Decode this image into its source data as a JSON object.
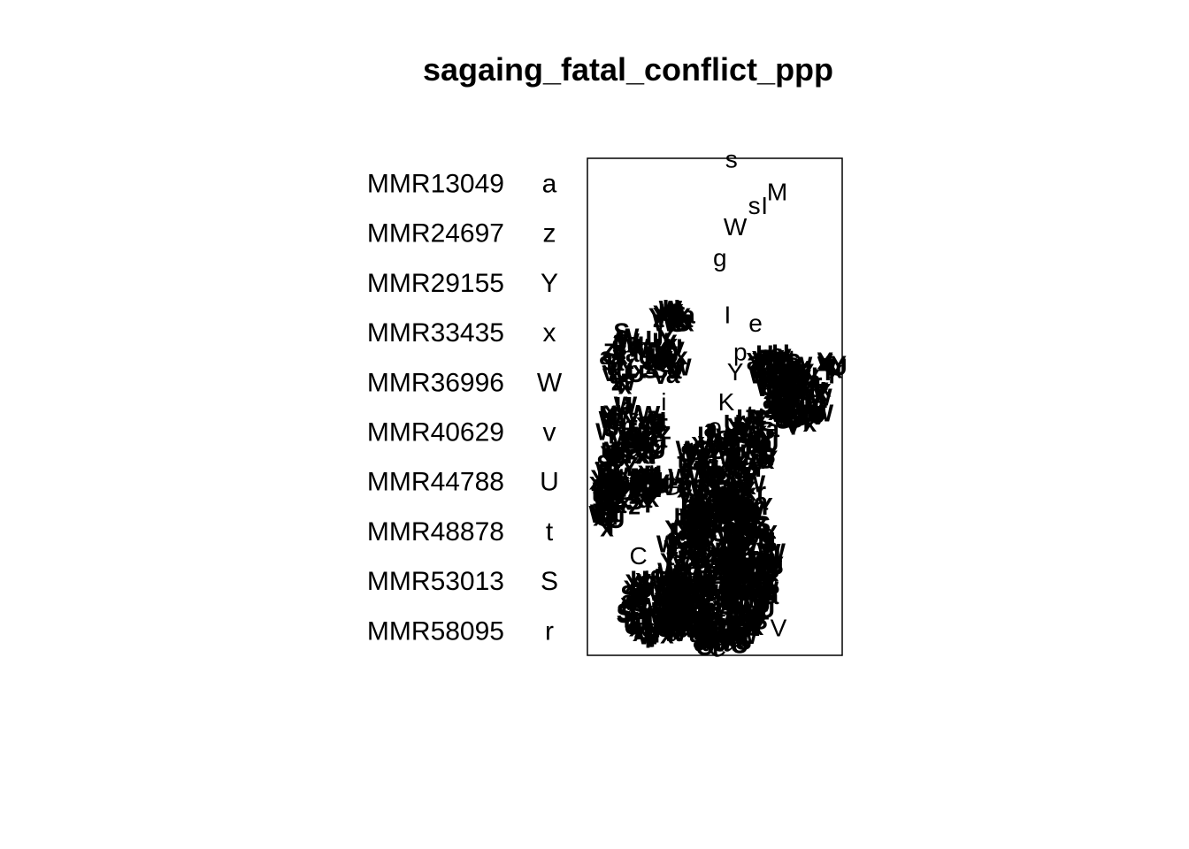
{
  "chart_data": {
    "type": "scatter",
    "title": "sagaing_fatal_conflict_ppp",
    "xlabel": "",
    "ylabel": "",
    "axes_shown": false,
    "grid": false,
    "legend_position": "left",
    "marks": [
      "a",
      "z",
      "Y",
      "x",
      "W",
      "v",
      "U",
      "t",
      "S",
      "r"
    ],
    "legend": [
      {
        "label": "MMR13049",
        "mark": "a"
      },
      {
        "label": "MMR24697",
        "mark": "z"
      },
      {
        "label": "MMR29155",
        "mark": "Y"
      },
      {
        "label": "MMR33435",
        "mark": "x"
      },
      {
        "label": "MMR36996",
        "mark": "W"
      },
      {
        "label": "MMR40629",
        "mark": "v"
      },
      {
        "label": "MMR44788",
        "mark": "U"
      },
      {
        "label": "MMR48878",
        "mark": "t"
      },
      {
        "label": "MMR53013",
        "mark": "S"
      },
      {
        "label": "MMR58095",
        "mark": "r"
      }
    ],
    "points": [
      {
        "x": 0.565,
        "y": 0.998,
        "mark": "s"
      },
      {
        "x": 0.745,
        "y": 0.932,
        "mark": "M"
      },
      {
        "x": 0.695,
        "y": 0.905,
        "mark": "I"
      },
      {
        "x": 0.655,
        "y": 0.905,
        "mark": "s"
      },
      {
        "x": 0.58,
        "y": 0.862,
        "mark": "W"
      },
      {
        "x": 0.52,
        "y": 0.8,
        "mark": "g"
      },
      {
        "x": 0.55,
        "y": 0.685,
        "mark": "I"
      },
      {
        "x": 0.66,
        "y": 0.668,
        "mark": "e"
      },
      {
        "x": 0.6,
        "y": 0.61,
        "mark": "p"
      },
      {
        "x": 0.58,
        "y": 0.57,
        "mark": "Y"
      },
      {
        "x": 0.31,
        "y": 0.6,
        "mark": "W"
      },
      {
        "x": 0.3,
        "y": 0.51,
        "mark": "i"
      },
      {
        "x": 0.545,
        "y": 0.51,
        "mark": "K"
      },
      {
        "x": 0.5,
        "y": 0.46,
        "mark": "o"
      },
      {
        "x": 0.78,
        "y": 0.545,
        "mark": "D"
      },
      {
        "x": 0.79,
        "y": 0.49,
        "mark": "G"
      },
      {
        "x": 0.43,
        "y": 0.39,
        "mark": "Q"
      },
      {
        "x": 0.2,
        "y": 0.34,
        "mark": "v"
      },
      {
        "x": 0.33,
        "y": 0.34,
        "mark": "G"
      },
      {
        "x": 0.34,
        "y": 0.23,
        "mark": "S"
      },
      {
        "x": 0.2,
        "y": 0.2,
        "mark": "C"
      },
      {
        "x": 0.2,
        "y": 0.115,
        "mark": "X"
      },
      {
        "x": 0.19,
        "y": 0.065,
        "mark": "F"
      },
      {
        "x": 0.75,
        "y": 0.055,
        "mark": "V"
      },
      {
        "x": 0.51,
        "y": 0.015,
        "mark": "C"
      }
    ],
    "dense_cluster_note_mark": "W"
  }
}
